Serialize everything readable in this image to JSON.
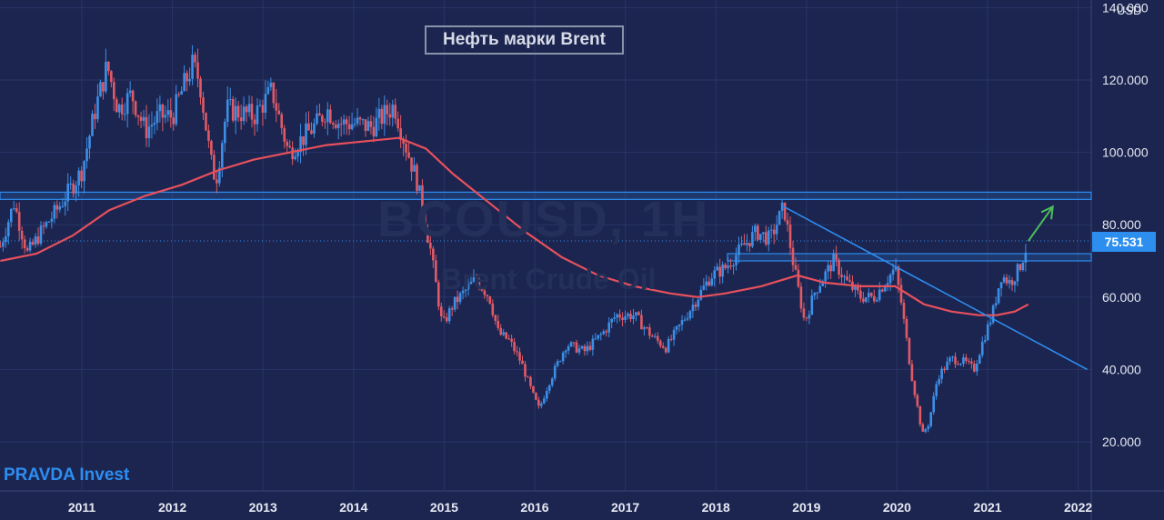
{
  "chart_data": {
    "type": "candlestick",
    "title": "Нефть марки Brent",
    "watermark": "BCOUSD, 1H",
    "watermark_subtitle": "Brent Crude Oil",
    "brand": "PRAVDA Invest",
    "unit": "USD",
    "current_price": "75.531",
    "x_ticks": [
      "2011",
      "2012",
      "2013",
      "2014",
      "2015",
      "2016",
      "2017",
      "2018",
      "2019",
      "2020",
      "2021",
      "2022"
    ],
    "y_ticks": [
      "20.000",
      "40.000",
      "60.000",
      "80.000",
      "100.000",
      "120.000",
      "140.000"
    ],
    "ylim": [
      0,
      145
    ],
    "xlim": [
      2010.1,
      2022.1
    ],
    "price_points": [
      [
        2010.1,
        74
      ],
      [
        2010.25,
        86
      ],
      [
        2010.4,
        72
      ],
      [
        2010.55,
        78
      ],
      [
        2010.75,
        85
      ],
      [
        2011.0,
        95
      ],
      [
        2011.15,
        112
      ],
      [
        2011.28,
        124
      ],
      [
        2011.4,
        112
      ],
      [
        2011.55,
        116
      ],
      [
        2011.7,
        106
      ],
      [
        2011.85,
        110
      ],
      [
        2012.0,
        110
      ],
      [
        2012.12,
        118
      ],
      [
        2012.22,
        124
      ],
      [
        2012.3,
        120
      ],
      [
        2012.42,
        98
      ],
      [
        2012.48,
        92
      ],
      [
        2012.6,
        112
      ],
      [
        2012.75,
        111
      ],
      [
        2012.9,
        110
      ],
      [
        2013.1,
        117
      ],
      [
        2013.28,
        100
      ],
      [
        2013.4,
        103
      ],
      [
        2013.6,
        108
      ],
      [
        2013.7,
        112
      ],
      [
        2013.85,
        108
      ],
      [
        2014.0,
        108
      ],
      [
        2014.2,
        107
      ],
      [
        2014.45,
        113
      ],
      [
        2014.55,
        104
      ],
      [
        2014.7,
        92
      ],
      [
        2014.85,
        73
      ],
      [
        2014.98,
        52
      ],
      [
        2015.1,
        58
      ],
      [
        2015.35,
        65
      ],
      [
        2015.5,
        60
      ],
      [
        2015.6,
        50
      ],
      [
        2015.72,
        48
      ],
      [
        2015.85,
        42
      ],
      [
        2015.98,
        33
      ],
      [
        2016.05,
        29
      ],
      [
        2016.15,
        36
      ],
      [
        2016.35,
        47
      ],
      [
        2016.55,
        45
      ],
      [
        2016.75,
        50
      ],
      [
        2016.9,
        55
      ],
      [
        2017.1,
        55
      ],
      [
        2017.3,
        49
      ],
      [
        2017.45,
        46
      ],
      [
        2017.6,
        52
      ],
      [
        2017.75,
        58
      ],
      [
        2017.95,
        66
      ],
      [
        2018.1,
        68
      ],
      [
        2018.3,
        74
      ],
      [
        2018.45,
        78
      ],
      [
        2018.6,
        76
      ],
      [
        2018.75,
        85
      ],
      [
        2018.85,
        70
      ],
      [
        2018.98,
        53
      ],
      [
        2019.1,
        62
      ],
      [
        2019.3,
        70
      ],
      [
        2019.45,
        64
      ],
      [
        2019.6,
        60
      ],
      [
        2019.75,
        60
      ],
      [
        2019.98,
        68
      ],
      [
        2020.05,
        58
      ],
      [
        2020.15,
        40
      ],
      [
        2020.28,
        22
      ],
      [
        2020.35,
        25
      ],
      [
        2020.45,
        38
      ],
      [
        2020.6,
        43
      ],
      [
        2020.75,
        42
      ],
      [
        2020.85,
        40
      ],
      [
        2020.95,
        48
      ],
      [
        2021.05,
        55
      ],
      [
        2021.15,
        66
      ],
      [
        2021.25,
        64
      ],
      [
        2021.35,
        68
      ],
      [
        2021.45,
        75.5
      ]
    ],
    "ma_points": [
      [
        2010.1,
        70
      ],
      [
        2010.5,
        72
      ],
      [
        2010.9,
        77
      ],
      [
        2011.3,
        84
      ],
      [
        2011.7,
        88
      ],
      [
        2012.1,
        91
      ],
      [
        2012.5,
        95
      ],
      [
        2012.9,
        98
      ],
      [
        2013.3,
        100
      ],
      [
        2013.7,
        102
      ],
      [
        2014.1,
        103
      ],
      [
        2014.5,
        104
      ],
      [
        2014.8,
        101
      ],
      [
        2015.1,
        94
      ],
      [
        2015.5,
        86
      ],
      [
        2015.9,
        78
      ],
      [
        2016.3,
        71
      ],
      [
        2016.7,
        66
      ],
      [
        2017.1,
        63
      ],
      [
        2017.5,
        61
      ],
      [
        2017.8,
        60
      ],
      [
        2018.1,
        61
      ],
      [
        2018.5,
        63
      ],
      [
        2018.9,
        66
      ],
      [
        2019.2,
        64
      ],
      [
        2019.6,
        63
      ],
      [
        2019.98,
        63
      ],
      [
        2020.3,
        58
      ],
      [
        2020.6,
        56
      ],
      [
        2020.9,
        55
      ],
      [
        2021.1,
        55
      ],
      [
        2021.3,
        56
      ],
      [
        2021.45,
        58
      ]
    ],
    "horizontal_levels": [
      87,
      89,
      72,
      70
    ],
    "trendline": [
      [
        2018.75,
        85
      ],
      [
        2022.1,
        40
      ]
    ],
    "arrow": [
      [
        2021.45,
        75.5
      ],
      [
        2021.72,
        85
      ]
    ],
    "colors": {
      "background": "#1b2550",
      "bullish": "#3d8fe6",
      "bearish": "#e05a66",
      "moving_average": "#e8505c",
      "trendline": "#2e8df0",
      "zone": "#2e8df0",
      "arrow": "#4dbd5a",
      "current_price": "#2c8ff0"
    }
  }
}
